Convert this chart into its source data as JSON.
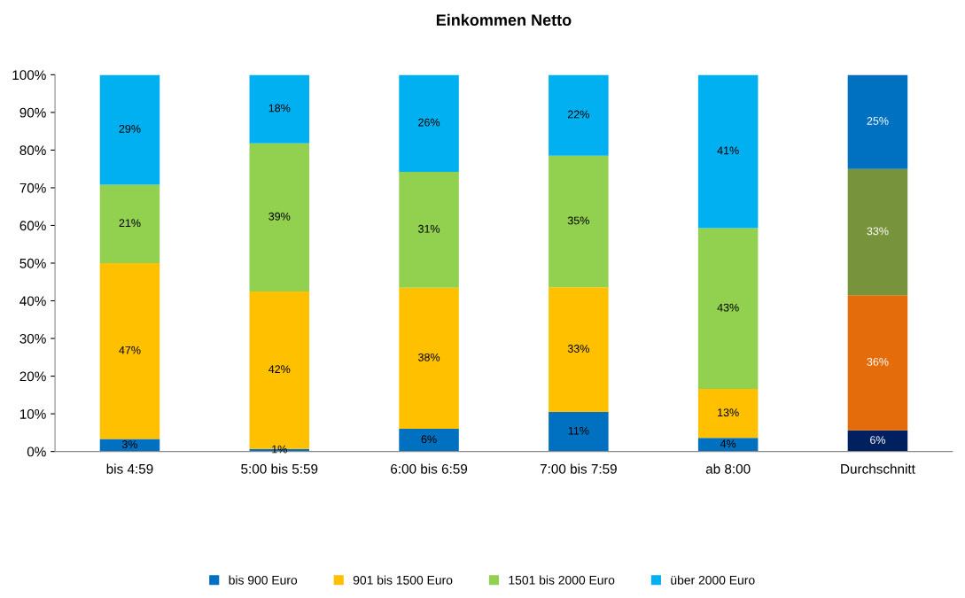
{
  "chart_data": {
    "type": "bar",
    "title": "Einkommen Netto",
    "stacked": true,
    "categories": [
      "bis 4:59",
      "5:00 bis 5:59",
      "6:00 bis 6:59",
      "7:00 bis 7:59",
      "ab 8:00",
      "Durchschnitt"
    ],
    "series": [
      {
        "name": "bis 900 Euro",
        "color": "#0070c0",
        "colors": [
          "#0070c0",
          "#0070c0",
          "#0070c0",
          "#0070c0",
          "#0070c0",
          "#002060"
        ],
        "values": [
          3.3,
          0.7,
          6,
          10.5,
          3.6,
          5.6
        ],
        "value_labels": [
          "3%",
          "1%",
          "6%",
          "11%",
          "4%",
          "6%"
        ]
      },
      {
        "name": "901 bis 1500 Euro",
        "color": "#ffc000",
        "colors": [
          "#ffc000",
          "#ffc000",
          "#ffc000",
          "#ffc000",
          "#ffc000",
          "#e46c0a"
        ],
        "values": [
          46.7,
          41.8,
          37.5,
          33.1,
          13,
          35.9
        ],
        "value_labels": [
          "47%",
          "42%",
          "38%",
          "33%",
          "13%",
          "36%"
        ]
      },
      {
        "name": "1501 bis 2000 Euro",
        "color": "#92d050",
        "colors": [
          "#92d050",
          "#92d050",
          "#92d050",
          "#92d050",
          "#92d050",
          "#77933c"
        ],
        "values": [
          20.8,
          39.3,
          30.7,
          34.9,
          42.7,
          33.5
        ],
        "value_labels": [
          "21%",
          "39%",
          "31%",
          "35%",
          "43%",
          "33%"
        ]
      },
      {
        "name": "über 2000 Euro",
        "color": "#00b0f0",
        "colors": [
          "#00b0f0",
          "#00b0f0",
          "#00b0f0",
          "#00b0f0",
          "#00b0f0",
          "#0070c0"
        ],
        "values": [
          29.2,
          18.2,
          25.8,
          21.5,
          40.7,
          25
        ],
        "value_labels": [
          "29%",
          "18%",
          "26%",
          "22%",
          "41%",
          "25%"
        ]
      }
    ],
    "ylim": [
      0,
      100
    ],
    "yticks": [
      {
        "value": 0,
        "label": "0%"
      },
      {
        "value": 10,
        "label": "10%"
      },
      {
        "value": 20,
        "label": "20%"
      },
      {
        "value": 30,
        "label": "30%"
      },
      {
        "value": 40,
        "label": "40%"
      },
      {
        "value": 50,
        "label": "50%"
      },
      {
        "value": 60,
        "label": "60%"
      },
      {
        "value": 70,
        "label": "70%"
      },
      {
        "value": 80,
        "label": "80%"
      },
      {
        "value": 90,
        "label": "90%"
      },
      {
        "value": 100,
        "label": "100%"
      }
    ],
    "grid": false,
    "legend": "bottom"
  }
}
